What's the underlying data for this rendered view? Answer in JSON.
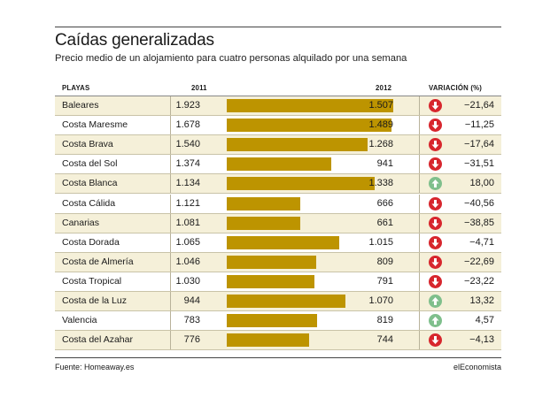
{
  "title": "Caídas generalizadas",
  "subtitle": "Precio medio de un alojamiento para cuatro personas alquilado por una semana",
  "headers": {
    "playas": "PLAYAS",
    "y2011": "2011",
    "y2012": "2012",
    "variacion": "VARIACIÓN (%)"
  },
  "colors": {
    "bar": "#bd9400",
    "shade": "#f5f0d9",
    "down": "#d7262d",
    "up": "#7fbf8c"
  },
  "chart_data": {
    "type": "table",
    "columns": [
      "PLAYAS",
      "2011",
      "2012",
      "VARIACIÓN (%)"
    ],
    "bar_series": "2012",
    "bar_max": 1600,
    "rows": [
      {
        "name": "Baleares",
        "v2011": "1.923",
        "v2012": "1.507",
        "value2012": 1507,
        "var": "−21,64",
        "dir": "down"
      },
      {
        "name": "Costa Maresme",
        "v2011": "1.678",
        "v2012": "1.489",
        "value2012": 1489,
        "var": "−11,25",
        "dir": "down"
      },
      {
        "name": "Costa Brava",
        "v2011": "1.540",
        "v2012": "1.268",
        "value2012": 1268,
        "var": "−17,64",
        "dir": "down"
      },
      {
        "name": "Costa del Sol",
        "v2011": "1.374",
        "v2012": "941",
        "value2012": 941,
        "var": "−31,51",
        "dir": "down"
      },
      {
        "name": "Costa Blanca",
        "v2011": "1.134",
        "v2012": "1.338",
        "value2012": 1338,
        "var": "18,00",
        "dir": "up"
      },
      {
        "name": "Costa Cálida",
        "v2011": "1.121",
        "v2012": "666",
        "value2012": 666,
        "var": "−40,56",
        "dir": "down"
      },
      {
        "name": "Canarias",
        "v2011": "1.081",
        "v2012": "661",
        "value2012": 661,
        "var": "−38,85",
        "dir": "down"
      },
      {
        "name": "Costa Dorada",
        "v2011": "1.065",
        "v2012": "1.015",
        "value2012": 1015,
        "var": "−4,71",
        "dir": "down"
      },
      {
        "name": "Costa de Almería",
        "v2011": "1.046",
        "v2012": "809",
        "value2012": 809,
        "var": "−22,69",
        "dir": "down"
      },
      {
        "name": "Costa Tropical",
        "v2011": "1.030",
        "v2012": "791",
        "value2012": 791,
        "var": "−23,22",
        "dir": "down"
      },
      {
        "name": "Costa de la Luz",
        "v2011": "944",
        "v2012": "1.070",
        "value2012": 1070,
        "var": "13,32",
        "dir": "up"
      },
      {
        "name": "Valencia",
        "v2011": "783",
        "v2012": "819",
        "value2012": 819,
        "var": "4,57",
        "dir": "up"
      },
      {
        "name": "Costa del Azahar",
        "v2011": "776",
        "v2012": "744",
        "value2012": 744,
        "var": "−4,13",
        "dir": "down"
      }
    ]
  },
  "footer": {
    "source": "Fuente: Homeaway.es",
    "brand": "elEconomista"
  }
}
